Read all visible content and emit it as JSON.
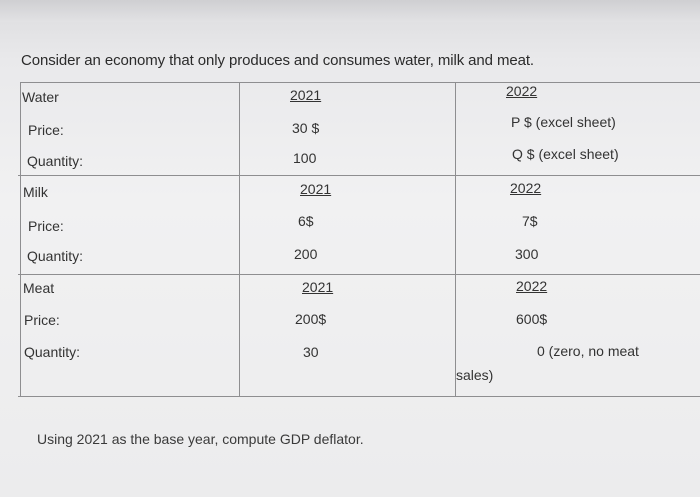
{
  "intro": "Consider an economy that only produces and consumes water, milk and meat.",
  "sections": [
    {
      "name": "Water",
      "year1": "2021",
      "year2": "2022",
      "price_label": "Price:",
      "price1": "30 $",
      "price2": "P $ (excel sheet)",
      "qty_label": "Quantity:",
      "qty1": "100",
      "qty2": "Q $ (excel sheet)"
    },
    {
      "name": "Milk",
      "year1": "2021",
      "year2": "2022",
      "price_label": "Price:",
      "price1": "6$",
      "price2": "7$",
      "qty_label": "Quantity:",
      "qty1": "200",
      "qty2": "300"
    },
    {
      "name": "Meat",
      "year1": "2021",
      "year2": "2022",
      "price_label": "Price:",
      "price1": "200$",
      "price2": "600$",
      "qty_label": "Quantity:",
      "qty1": "30",
      "qty2": "0 (zero, no meat"
    }
  ],
  "overflow_text": "sales)",
  "footer": "Using 2021 as the base year, compute GDP deflator."
}
